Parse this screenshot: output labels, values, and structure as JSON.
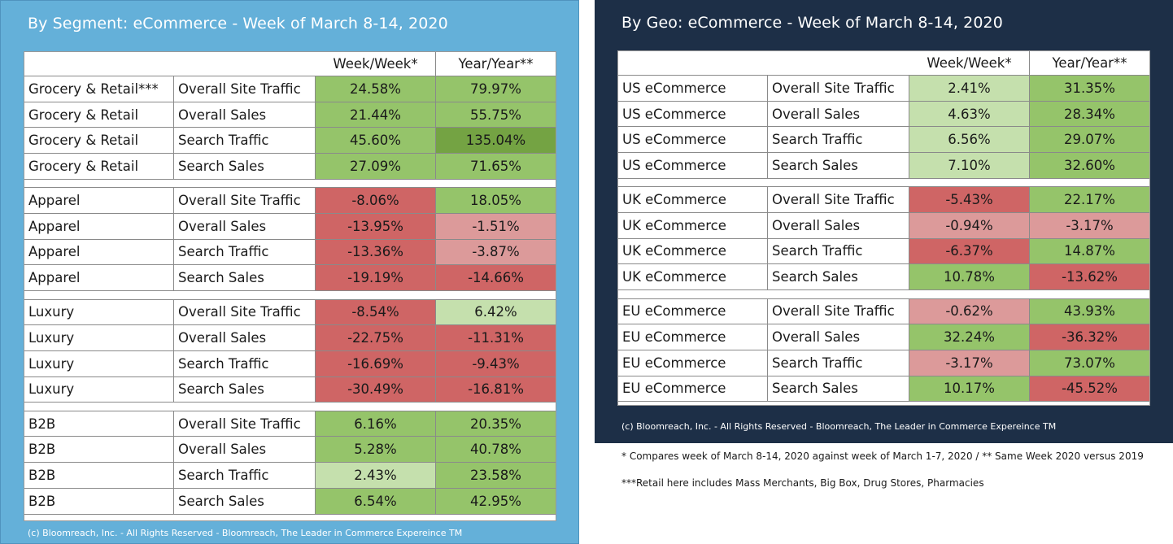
{
  "colors": {
    "strong_green": "#74a343",
    "green": "#95c46a",
    "light_green": "#c5e0ad",
    "light_red": "#dc9a9a",
    "red": "#cf6565",
    "left_panel_bg": "#64b0d9",
    "right_panel_bg": "#1d2f47"
  },
  "segment": {
    "title": "By Segment: eCommerce - Week of March 8-14, 2020",
    "header": {
      "week": "Week/Week*",
      "year": "Year/Year**"
    },
    "footer": "(c) Bloomreach, Inc. - All Rights Reserved - Bloomreach, The Leader in Commerce Expereince TM",
    "groups": [
      {
        "rows": [
          {
            "segment": "Grocery & Retail***",
            "metric": "Overall Site Traffic",
            "week": "24.58%",
            "year": "79.97%",
            "week_color": "green",
            "year_color": "green"
          },
          {
            "segment": "Grocery & Retail",
            "metric": "Overall Sales",
            "week": "21.44%",
            "year": "55.75%",
            "week_color": "green",
            "year_color": "green"
          },
          {
            "segment": "Grocery & Retail",
            "metric": "Search Traffic",
            "week": "45.60%",
            "year": "135.04%",
            "week_color": "green",
            "year_color": "strong_green"
          },
          {
            "segment": "Grocery & Retail",
            "metric": "Search Sales",
            "week": "27.09%",
            "year": "71.65%",
            "week_color": "green",
            "year_color": "green"
          }
        ]
      },
      {
        "rows": [
          {
            "segment": "Apparel",
            "metric": "Overall Site Traffic",
            "week": "-8.06%",
            "year": "18.05%",
            "week_color": "red",
            "year_color": "green"
          },
          {
            "segment": "Apparel",
            "metric": "Overall Sales",
            "week": "-13.95%",
            "year": "-1.51%",
            "week_color": "red",
            "year_color": "light_red"
          },
          {
            "segment": "Apparel",
            "metric": "Search Traffic",
            "week": "-13.36%",
            "year": "-3.87%",
            "week_color": "red",
            "year_color": "light_red"
          },
          {
            "segment": "Apparel",
            "metric": "Search Sales",
            "week": "-19.19%",
            "year": "-14.66%",
            "week_color": "red",
            "year_color": "red"
          }
        ]
      },
      {
        "rows": [
          {
            "segment": "Luxury",
            "metric": "Overall Site Traffic",
            "week": "-8.54%",
            "year": "6.42%",
            "week_color": "red",
            "year_color": "light_green"
          },
          {
            "segment": "Luxury",
            "metric": "Overall Sales",
            "week": "-22.75%",
            "year": "-11.31%",
            "week_color": "red",
            "year_color": "red"
          },
          {
            "segment": "Luxury",
            "metric": "Search Traffic",
            "week": "-16.69%",
            "year": "-9.43%",
            "week_color": "red",
            "year_color": "red"
          },
          {
            "segment": "Luxury",
            "metric": "Search Sales",
            "week": "-30.49%",
            "year": "-16.81%",
            "week_color": "red",
            "year_color": "red"
          }
        ]
      },
      {
        "rows": [
          {
            "segment": "B2B",
            "metric": "Overall Site Traffic",
            "week": "6.16%",
            "year": "20.35%",
            "week_color": "green",
            "year_color": "green"
          },
          {
            "segment": "B2B",
            "metric": "Overall Sales",
            "week": "5.28%",
            "year": "40.78%",
            "week_color": "green",
            "year_color": "green"
          },
          {
            "segment": "B2B",
            "metric": "Search Traffic",
            "week": "2.43%",
            "year": "23.58%",
            "week_color": "light_green",
            "year_color": "green"
          },
          {
            "segment": "B2B",
            "metric": "Search Sales",
            "week": "6.54%",
            "year": "42.95%",
            "week_color": "green",
            "year_color": "green"
          }
        ]
      }
    ]
  },
  "geo": {
    "title": "By Geo: eCommerce - Week of March 8-14, 2020",
    "header": {
      "week": "Week/Week*",
      "year": "Year/Year**"
    },
    "footer": "(c) Bloomreach, Inc. - All Rights Reserved - Bloomreach, The Leader in Commerce Expereince TM",
    "groups": [
      {
        "rows": [
          {
            "segment": "US eCommerce",
            "metric": "Overall Site Traffic",
            "week": "2.41%",
            "year": "31.35%",
            "week_color": "light_green",
            "year_color": "green"
          },
          {
            "segment": "US eCommerce",
            "metric": "Overall Sales",
            "week": "4.63%",
            "year": "28.34%",
            "week_color": "light_green",
            "year_color": "green"
          },
          {
            "segment": "US eCommerce",
            "metric": "Search Traffic",
            "week": "6.56%",
            "year": "29.07%",
            "week_color": "light_green",
            "year_color": "green"
          },
          {
            "segment": "US eCommerce",
            "metric": "Search Sales",
            "week": "7.10%",
            "year": "32.60%",
            "week_color": "light_green",
            "year_color": "green"
          }
        ]
      },
      {
        "rows": [
          {
            "segment": "UK eCommerce",
            "metric": "Overall Site Traffic",
            "week": "-5.43%",
            "year": "22.17%",
            "week_color": "red",
            "year_color": "green"
          },
          {
            "segment": "UK eCommerce",
            "metric": "Overall Sales",
            "week": "-0.94%",
            "year": "-3.17%",
            "week_color": "light_red",
            "year_color": "light_red"
          },
          {
            "segment": "UK eCommerce",
            "metric": "Search Traffic",
            "week": "-6.37%",
            "year": "14.87%",
            "week_color": "red",
            "year_color": "green"
          },
          {
            "segment": "UK eCommerce",
            "metric": "Search Sales",
            "week": "10.78%",
            "year": "-13.62%",
            "week_color": "green",
            "year_color": "red"
          }
        ]
      },
      {
        "rows": [
          {
            "segment": "EU eCommerce",
            "metric": "Overall Site Traffic",
            "week": "-0.62%",
            "year": "43.93%",
            "week_color": "light_red",
            "year_color": "green"
          },
          {
            "segment": "EU eCommerce",
            "metric": "Overall Sales",
            "week": "32.24%",
            "year": "-36.32%",
            "week_color": "green",
            "year_color": "red"
          },
          {
            "segment": "EU eCommerce",
            "metric": "Search Traffic",
            "week": "-3.17%",
            "year": "73.07%",
            "week_color": "light_red",
            "year_color": "green"
          },
          {
            "segment": "EU eCommerce",
            "metric": "Search Sales",
            "week": "10.17%",
            "year": "-45.52%",
            "week_color": "green",
            "year_color": "red"
          }
        ]
      }
    ]
  },
  "notes": {
    "compare": "* Compares week of March 8-14, 2020 against week of March 1-7, 2020 / ** Same Week 2020 versus 2019",
    "retail": "***Retail here includes Mass Merchants, Big Box, Drug Stores, Pharmacies"
  }
}
